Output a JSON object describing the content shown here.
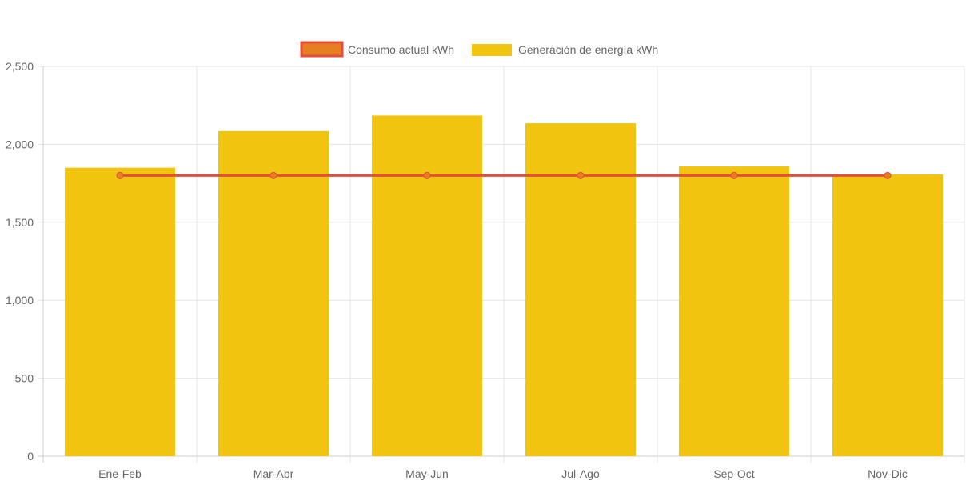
{
  "chart_data": {
    "type": "bar",
    "title": "",
    "xlabel": "",
    "ylabel": "",
    "categories": [
      "Ene-Feb",
      "Mar-Abr",
      "May-Jun",
      "Jul-Ago",
      "Sep-Oct",
      "Nov-Dic"
    ],
    "ylim": [
      0,
      2500
    ],
    "yticks": [
      0,
      500,
      1000,
      1500,
      2000,
      2500
    ],
    "ytick_labels": [
      "0",
      "500",
      "1,000",
      "1,500",
      "2,000",
      "2,500"
    ],
    "grid": true,
    "legend_position": "top",
    "series": [
      {
        "name": "Consumo actual kWh",
        "type": "line",
        "color": "#e74c3c",
        "fill": "#e67e22",
        "values": [
          1800,
          1800,
          1800,
          1800,
          1800,
          1800
        ]
      },
      {
        "name": "Generación de energía kWh",
        "type": "bar",
        "color": "#f1c40f",
        "values": [
          1850,
          2085,
          2185,
          2135,
          1858,
          1807
        ]
      }
    ]
  }
}
